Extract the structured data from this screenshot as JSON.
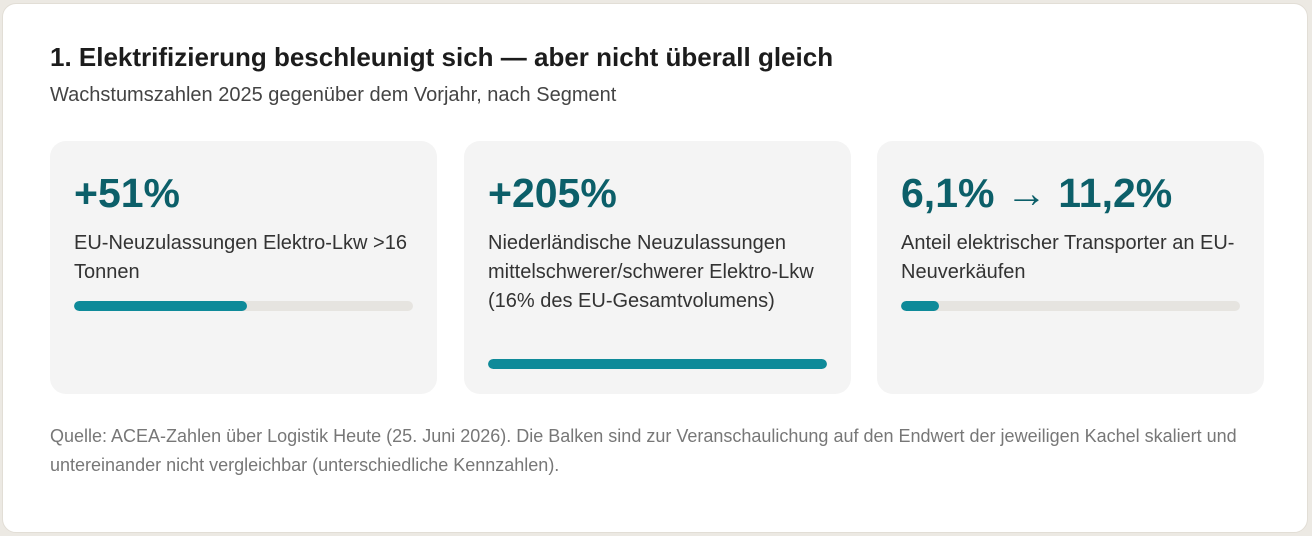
{
  "header": {
    "title": "1. Elektrifizierung beschleunigt sich — aber nicht überall gleich",
    "subtitle": "Wachstumszahlen 2025 gegenüber dem Vorjahr, nach Segment"
  },
  "colors": {
    "value_text": "#0c5f69",
    "bar_fill": "#0e8a99",
    "bar_track": "#e6e4e0",
    "card_background": "#f4f4f4"
  },
  "cards": [
    {
      "value": "+51%",
      "label": "EU-Neuzulassungen Elektro-Lkw >16 Tonnen",
      "bar_fraction": 0.51
    },
    {
      "value": "+205%",
      "label": "Niederländische Neuzulassungen mittelschwerer/schwerer Elektro-Lkw (16% des EU-Gesamtvolumens)",
      "bar_fraction": 1.0
    },
    {
      "value": "6,1% → 11,2%",
      "label": "Anteil elektrischer Transporter an EU-Neuverkäufen",
      "bar_fraction": 0.112
    }
  ],
  "footer": {
    "source": "Quelle: ACEA-Zahlen über Logistik Heute (25. Juni 2026). Die Balken sind zur Veranschaulichung auf den Endwert der jeweiligen Kachel skaliert und untereinander nicht vergleichbar (unterschiedliche Kennzahlen)."
  }
}
